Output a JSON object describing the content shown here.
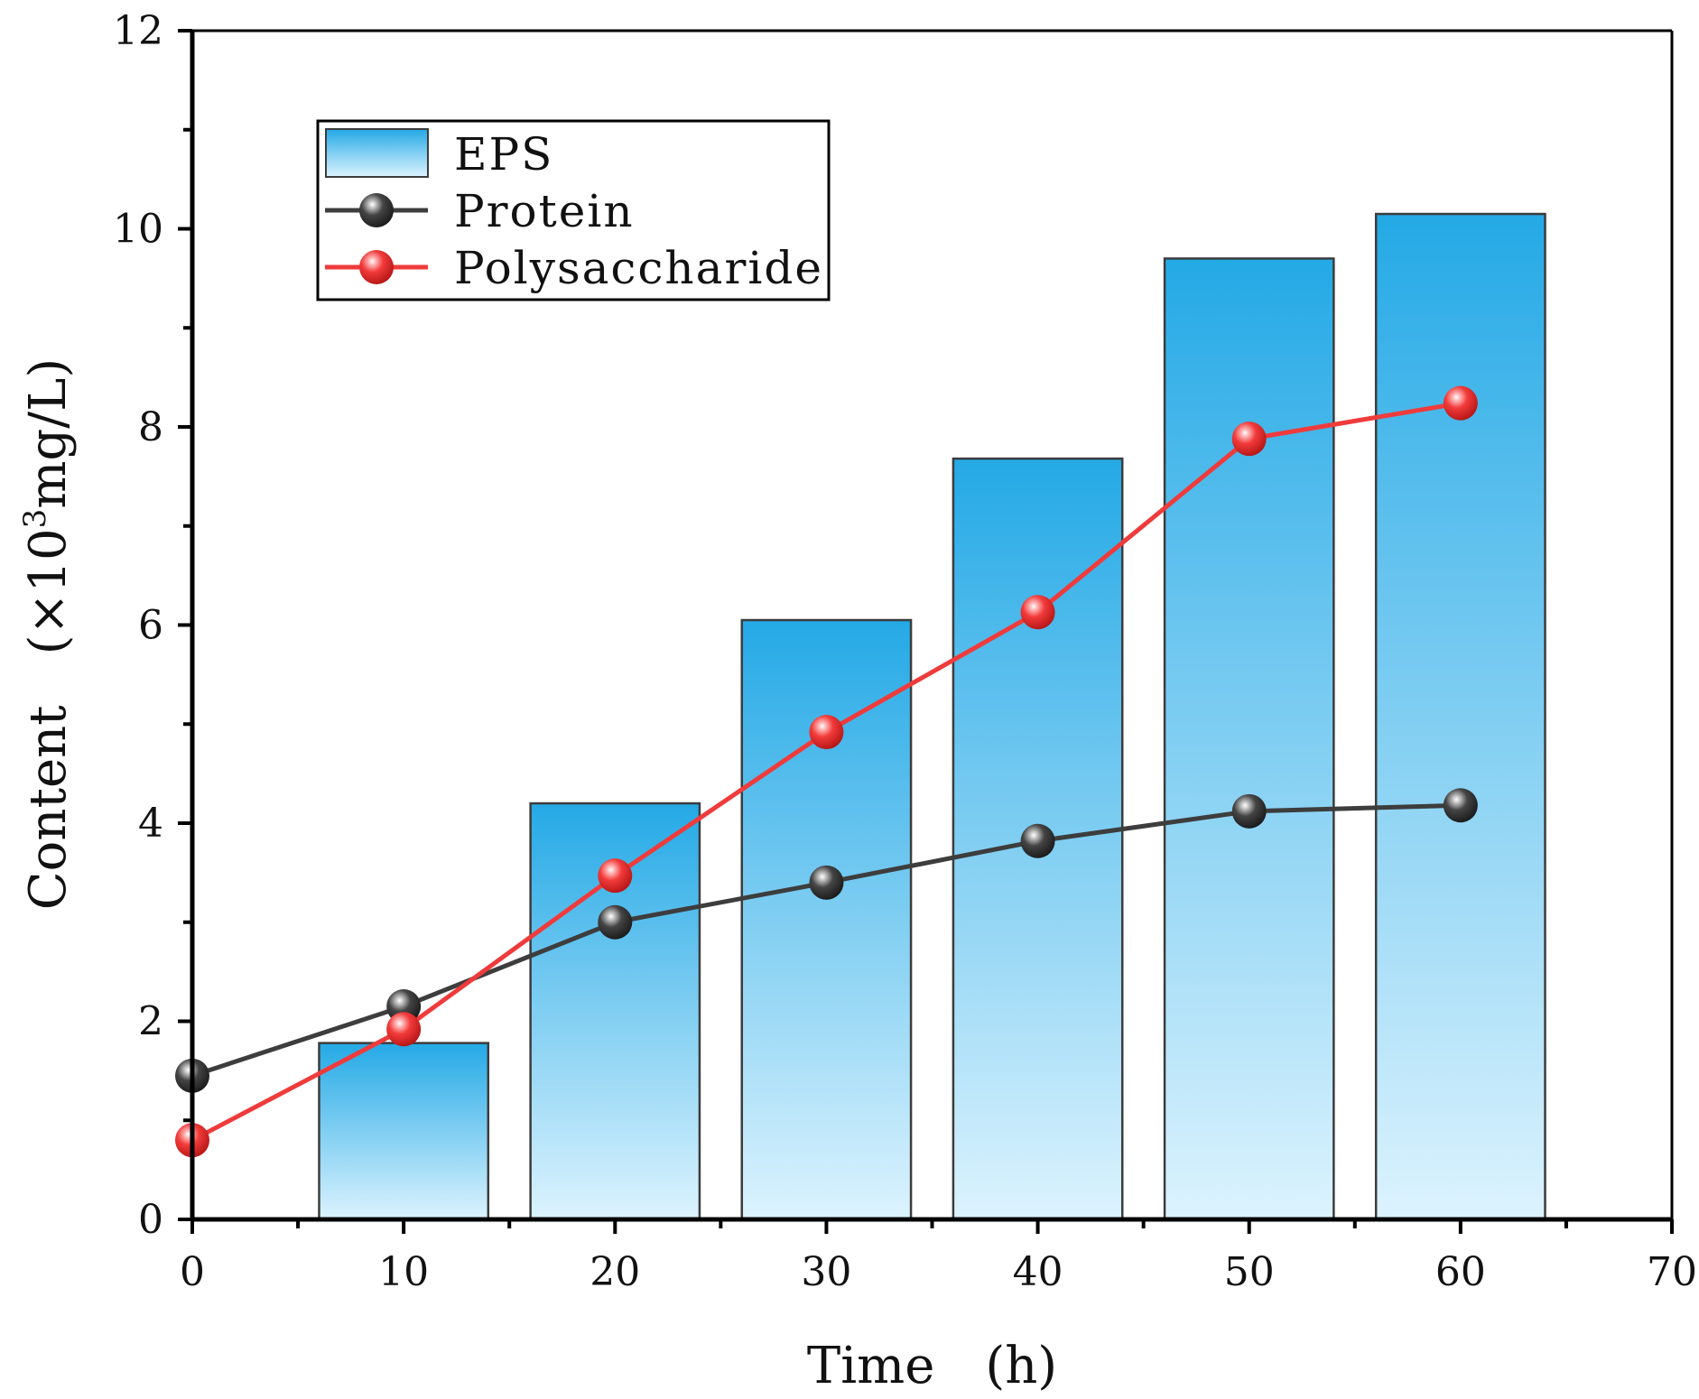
{
  "chart_data": {
    "type": "bar",
    "title": "",
    "xlabel": "Time　(h)",
    "ylabel_main": "Content　(×10",
    "ylabel_sup": "3",
    "ylabel_tail": "mg/L)",
    "xlim": [
      0,
      70
    ],
    "ylim": [
      0,
      12
    ],
    "xticks": [
      0,
      10,
      20,
      30,
      40,
      50,
      60,
      70
    ],
    "yticks": [
      0,
      2,
      4,
      6,
      8,
      10,
      12
    ],
    "grid": false,
    "legend_position": "top-left",
    "bars": {
      "name": "EPS",
      "x": [
        10,
        20,
        30,
        40,
        50,
        60
      ],
      "values": [
        1.78,
        4.2,
        6.05,
        7.68,
        9.7,
        10.15
      ],
      "width": 8
    },
    "series": [
      {
        "name": "Protein",
        "x": [
          0,
          10,
          20,
          30,
          40,
          50,
          60
        ],
        "values": [
          1.45,
          2.15,
          3.0,
          3.4,
          3.82,
          4.12,
          4.18
        ],
        "color": "#3d3d3d"
      },
      {
        "name": "Polysaccharide",
        "x": [
          0,
          10,
          20,
          30,
          40,
          50,
          60
        ],
        "values": [
          0.8,
          1.92,
          3.47,
          4.92,
          6.13,
          7.88,
          8.24
        ],
        "color": "#ef3b3b"
      }
    ],
    "colors": {
      "bar_top": "#24a9e6",
      "bar_bottom": "#dcf3fe",
      "bar_edge": "#3c3c3c",
      "axis": "#000000"
    }
  }
}
